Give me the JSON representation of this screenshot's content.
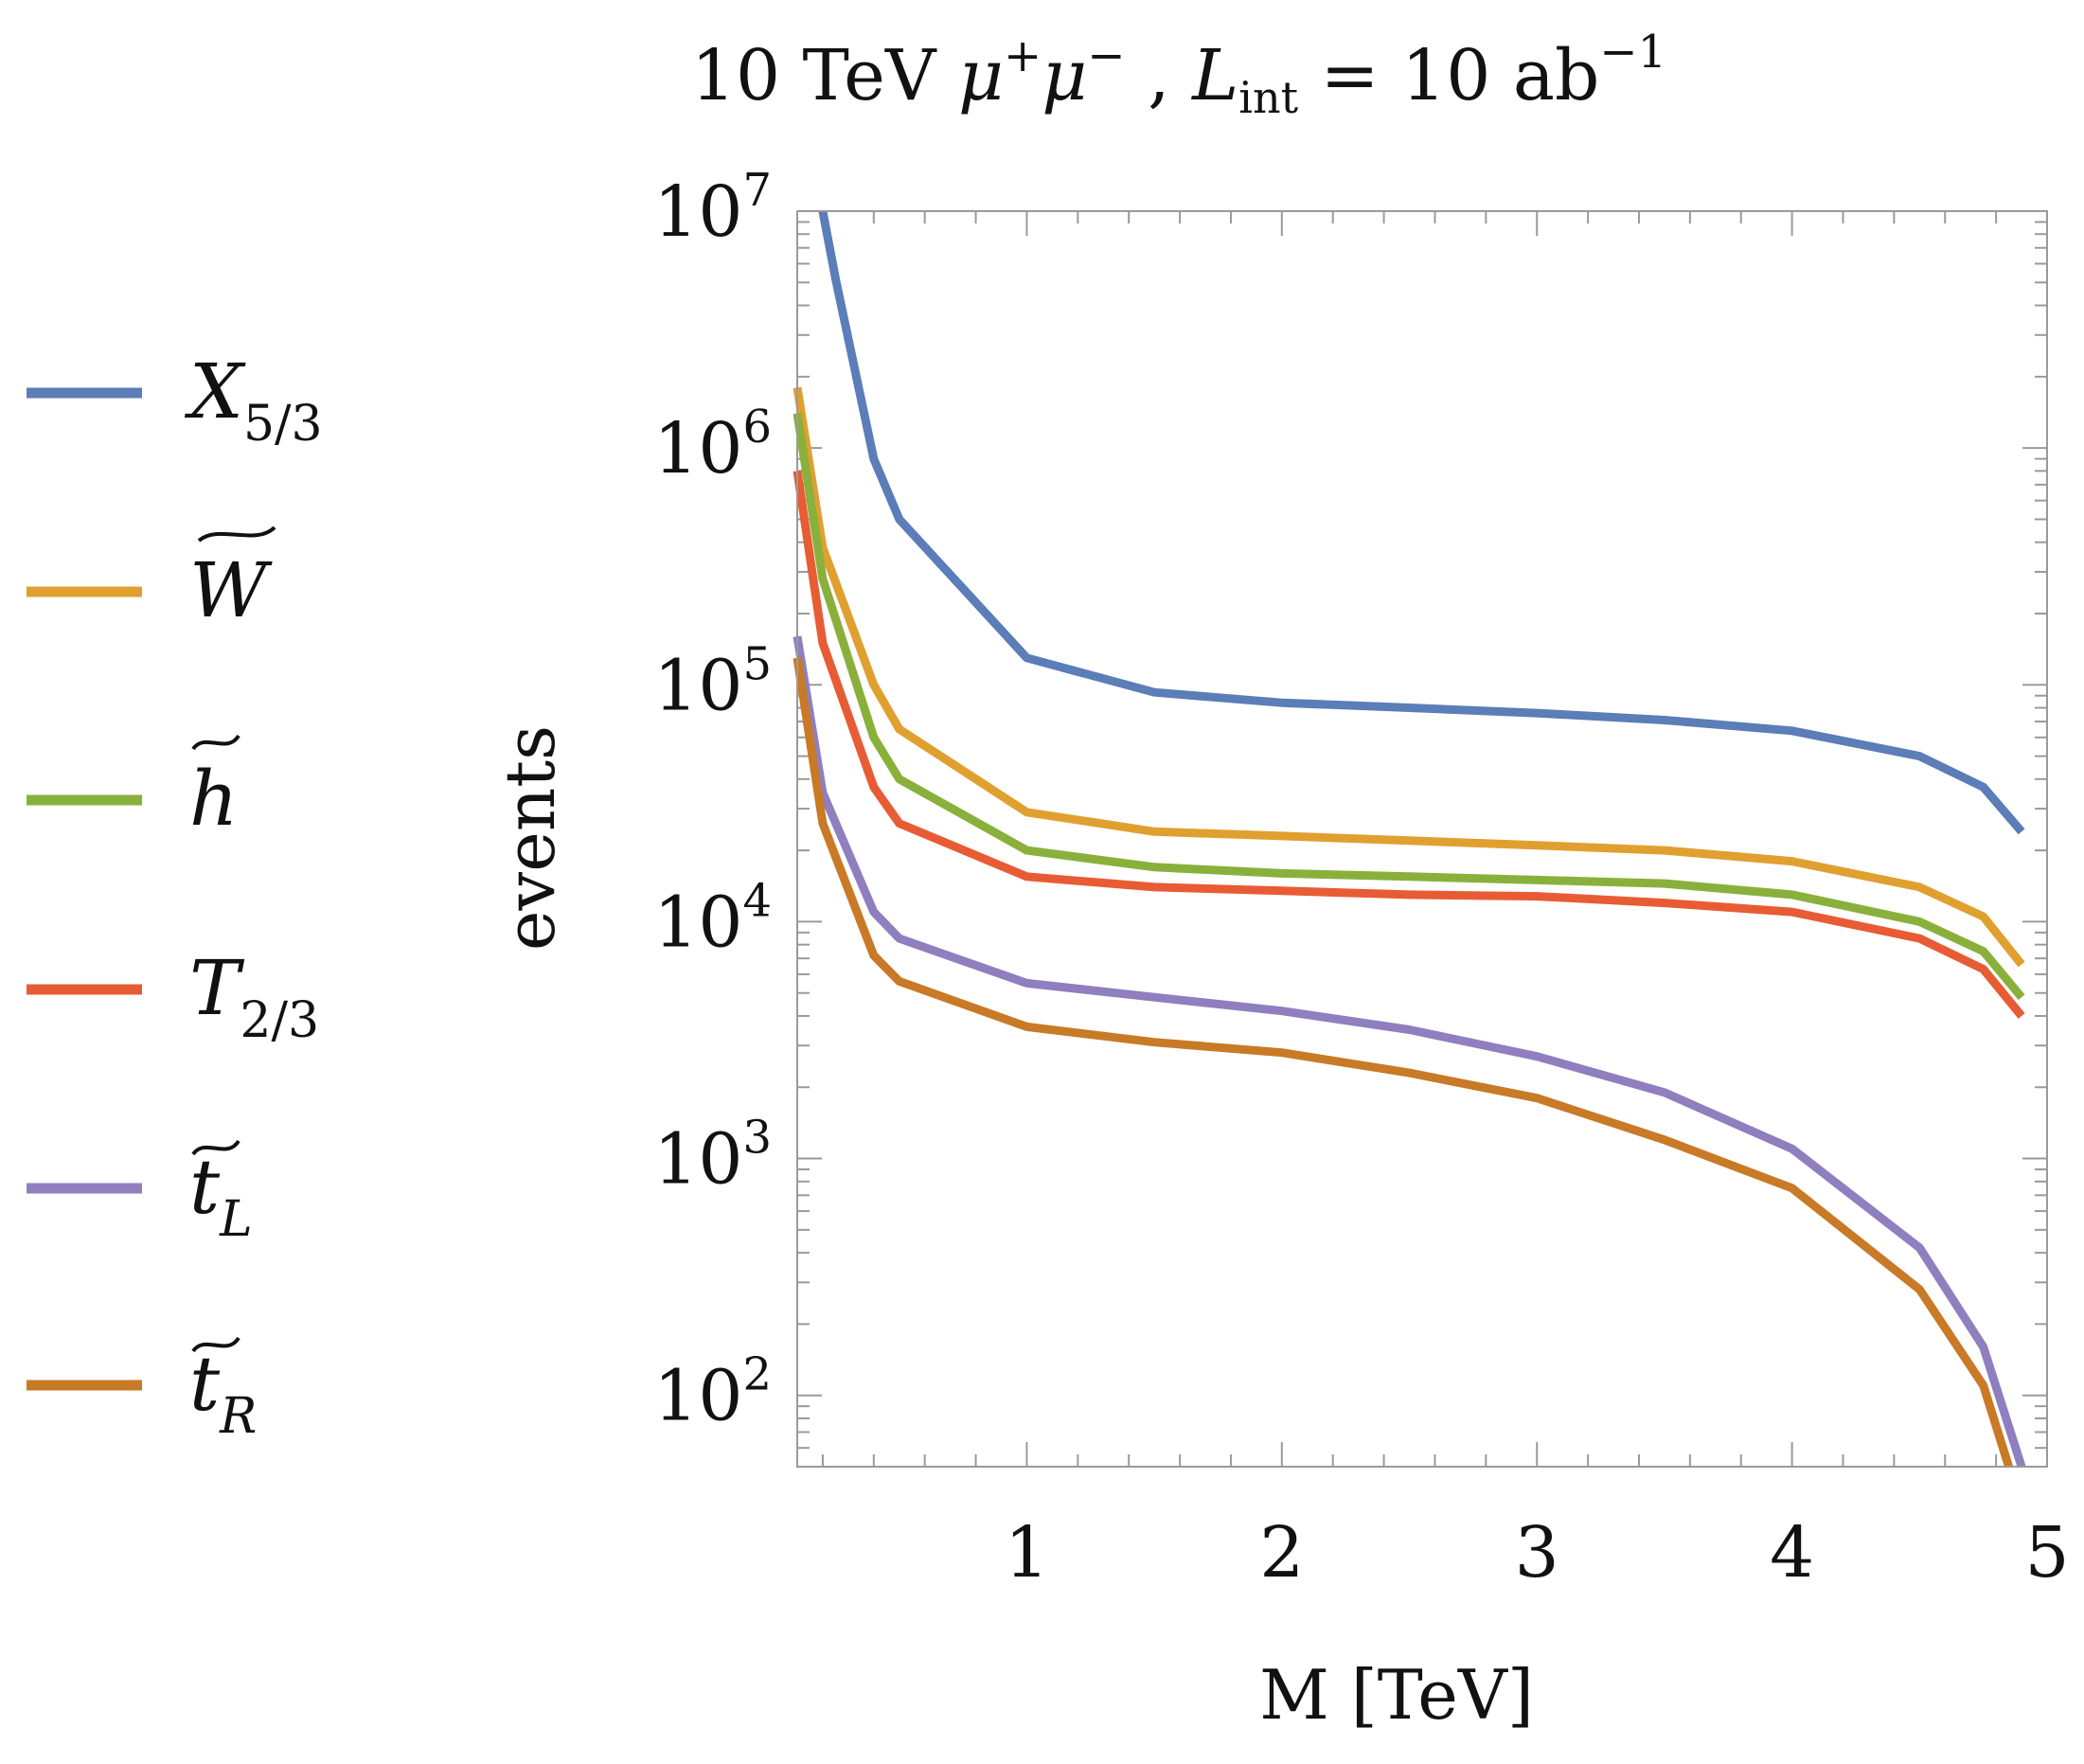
{
  "chart_data": {
    "type": "line",
    "title": {
      "prefix": "10 TeV ",
      "mu": "μ",
      "plus": "+",
      "minus": "−",
      "sep": " ,  ",
      "lint_base": "L",
      "lint_sub": "int",
      "equals": " = 10 ab",
      "exponent": "−1"
    },
    "xlabel": "M [TeV]",
    "ylabel": "events",
    "x_scale": "linear",
    "y_scale": "log",
    "xlim": [
      0.1,
      5.0
    ],
    "ylim": [
      50,
      10000000
    ],
    "x_ticks": [
      1,
      2,
      3,
      4,
      5
    ],
    "y_ticks": [
      {
        "value": 100,
        "base": "10",
        "exp": "2"
      },
      {
        "value": 1000,
        "base": "10",
        "exp": "3"
      },
      {
        "value": 10000,
        "base": "10",
        "exp": "4"
      },
      {
        "value": 100000,
        "base": "10",
        "exp": "5"
      },
      {
        "value": 1000000,
        "base": "10",
        "exp": "6"
      },
      {
        "value": 10000000,
        "base": "10",
        "exp": "7"
      }
    ],
    "grid": false,
    "legend_position": "left",
    "series": [
      {
        "name": "X5/3",
        "legend": {
          "base": "X",
          "sub": "5/3",
          "tilde": false
        },
        "color": "#5b7db8",
        "points": [
          [
            0.2,
            10000000
          ],
          [
            0.25,
            5200000
          ],
          [
            0.4,
            900000
          ],
          [
            0.5,
            500000
          ],
          [
            1.0,
            130000
          ],
          [
            1.5,
            93000
          ],
          [
            2.0,
            84000
          ],
          [
            2.5,
            80000
          ],
          [
            3.0,
            76000
          ],
          [
            3.5,
            71000
          ],
          [
            4.0,
            64000
          ],
          [
            4.5,
            50000
          ],
          [
            4.75,
            37000
          ],
          [
            4.9,
            24000
          ]
        ]
      },
      {
        "name": "W̃",
        "legend": {
          "base": "W",
          "sub": "",
          "tilde": true
        },
        "color": "#e0a030",
        "points": [
          [
            0.1,
            1800000
          ],
          [
            0.2,
            380000
          ],
          [
            0.4,
            100000
          ],
          [
            0.5,
            65000
          ],
          [
            1.0,
            29000
          ],
          [
            1.5,
            24000
          ],
          [
            2.0,
            23000
          ],
          [
            2.5,
            22000
          ],
          [
            3.0,
            21000
          ],
          [
            3.5,
            20000
          ],
          [
            4.0,
            18000
          ],
          [
            4.5,
            14000
          ],
          [
            4.75,
            10500
          ],
          [
            4.9,
            6600
          ]
        ]
      },
      {
        "name": "h̃",
        "legend": {
          "base": "h",
          "sub": "",
          "tilde": true
        },
        "color": "#8ab03c",
        "points": [
          [
            0.1,
            1400000
          ],
          [
            0.2,
            280000
          ],
          [
            0.4,
            60000
          ],
          [
            0.5,
            40000
          ],
          [
            1.0,
            20000
          ],
          [
            1.5,
            17000
          ],
          [
            2.0,
            16000
          ],
          [
            2.5,
            15500
          ],
          [
            3.0,
            15000
          ],
          [
            3.5,
            14500
          ],
          [
            4.0,
            13000
          ],
          [
            4.5,
            10000
          ],
          [
            4.75,
            7500
          ],
          [
            4.9,
            4800
          ]
        ]
      },
      {
        "name": "T2/3",
        "legend": {
          "base": "T",
          "sub": "2/3",
          "tilde": false
        },
        "color": "#e85c35",
        "points": [
          [
            0.1,
            800000
          ],
          [
            0.2,
            150000
          ],
          [
            0.4,
            37000
          ],
          [
            0.5,
            26000
          ],
          [
            1.0,
            15500
          ],
          [
            1.5,
            14000
          ],
          [
            2.0,
            13500
          ],
          [
            2.5,
            13000
          ],
          [
            3.0,
            12800
          ],
          [
            3.5,
            12000
          ],
          [
            4.0,
            11000
          ],
          [
            4.5,
            8500
          ],
          [
            4.75,
            6300
          ],
          [
            4.9,
            4000
          ]
        ]
      },
      {
        "name": "t̃L",
        "legend": {
          "base": "t",
          "sub": "L",
          "tilde": true
        },
        "color": "#8f7fbf",
        "points": [
          [
            0.1,
            160000
          ],
          [
            0.2,
            35000
          ],
          [
            0.4,
            11000
          ],
          [
            0.5,
            8500
          ],
          [
            1.0,
            5500
          ],
          [
            1.5,
            4800
          ],
          [
            2.0,
            4200
          ],
          [
            2.5,
            3500
          ],
          [
            3.0,
            2700
          ],
          [
            3.5,
            1900
          ],
          [
            4.0,
            1100
          ],
          [
            4.5,
            420
          ],
          [
            4.75,
            160
          ],
          [
            4.9,
            50
          ]
        ]
      },
      {
        "name": "t̃R",
        "legend": {
          "base": "t",
          "sub": "R",
          "tilde": true
        },
        "color": "#c87a26",
        "points": [
          [
            0.1,
            130000
          ],
          [
            0.2,
            26000
          ],
          [
            0.4,
            7200
          ],
          [
            0.5,
            5600
          ],
          [
            1.0,
            3600
          ],
          [
            1.5,
            3100
          ],
          [
            2.0,
            2800
          ],
          [
            2.5,
            2300
          ],
          [
            3.0,
            1800
          ],
          [
            3.5,
            1200
          ],
          [
            4.0,
            750
          ],
          [
            4.5,
            280
          ],
          [
            4.75,
            110
          ],
          [
            4.85,
            50
          ]
        ]
      }
    ]
  }
}
